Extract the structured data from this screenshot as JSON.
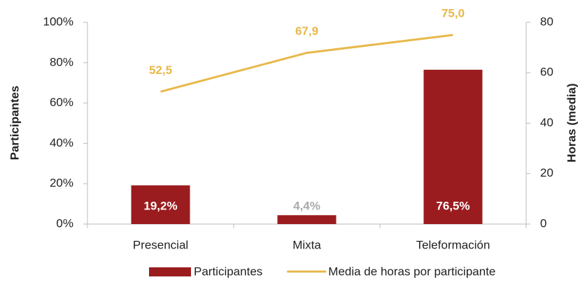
{
  "chart_data": {
    "type": "bar",
    "categories": [
      "Presencial",
      "Mixta",
      "Teleformación"
    ],
    "series": [
      {
        "name": "Participantes",
        "type": "bar",
        "color": "#9b1c1f",
        "values": [
          19.2,
          4.4,
          76.5
        ],
        "value_labels": [
          "19,2%",
          "4,4%",
          "76,5%"
        ]
      },
      {
        "name": "Media de horas por participante",
        "type": "line",
        "axis": "y2",
        "color": "#e8b84a",
        "values": [
          52.5,
          67.9,
          75.0
        ],
        "value_labels": [
          "52,5",
          "67,9",
          "75,0"
        ]
      }
    ],
    "ylabel": "Participantes",
    "y2label": "Horas (media)",
    "ylim": [
      0,
      100
    ],
    "yticks": [
      {
        "value": 0,
        "label": "0%"
      },
      {
        "value": 20,
        "label": "20%"
      },
      {
        "value": 40,
        "label": "40%"
      },
      {
        "value": 60,
        "label": "60%"
      },
      {
        "value": 80,
        "label": "80%"
      },
      {
        "value": 100,
        "label": "100%"
      }
    ],
    "y2lim": [
      0,
      80
    ],
    "y2ticks": [
      0,
      20,
      40,
      60,
      80
    ],
    "grid": false,
    "legend": "bottom"
  }
}
